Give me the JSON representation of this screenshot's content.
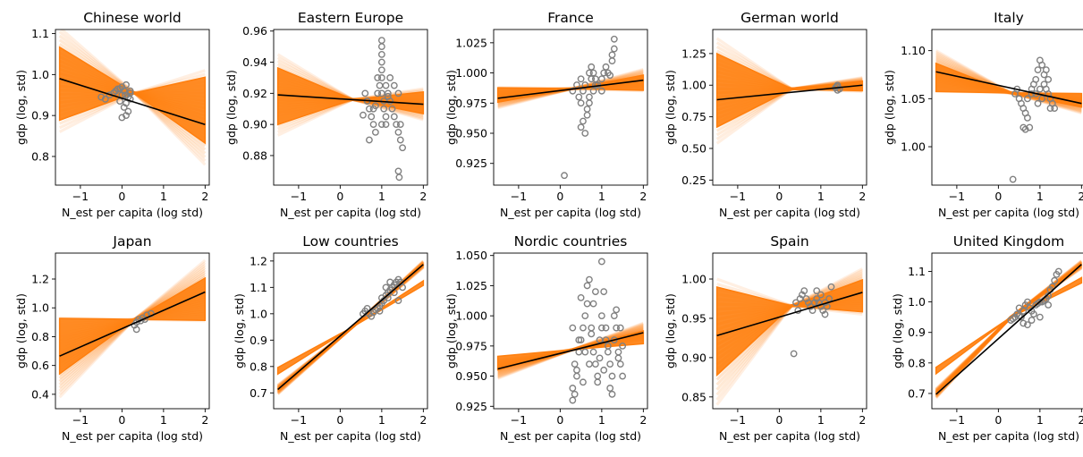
{
  "figure": {
    "colors": {
      "band": "#ff7f0e",
      "mean_line": "#000000",
      "points": "#808080",
      "axes": "#000000",
      "background": "#ffffff"
    }
  },
  "chart_data": [
    {
      "type": "scatter",
      "title": "Chinese world",
      "xlabel": "N_est per capita (log std)",
      "ylabel": "gdp (log, std)",
      "xlim": [
        -1.6,
        2.1
      ],
      "ylim": [
        0.73,
        1.11
      ],
      "xticks": [
        -1,
        0,
        1,
        2
      ],
      "xtick_labels": [
        "−1",
        "0",
        "1",
        "2"
      ],
      "yticks": [
        0.8,
        0.9,
        1.0,
        1.1
      ],
      "ytick_labels": [
        "0.8",
        "0.9",
        "1.0",
        "1.1"
      ],
      "mean_line": {
        "x": [
          -1.5,
          2.0
        ],
        "y": [
          0.99,
          0.878
        ]
      },
      "band": {
        "center": 0.955,
        "x_left": -1.5,
        "left": [
          0.86,
          1.115
        ],
        "x_right": 2.0,
        "right": [
          0.78,
          1.01
        ]
      },
      "points": {
        "x": [
          -0.5,
          -0.4,
          -0.3,
          -0.2,
          -0.1,
          -0.15,
          0.0,
          0.1,
          0.2,
          0.05,
          -0.05,
          0.15,
          0.1,
          0.0,
          0.05,
          -0.05,
          0.2,
          0.1,
          0.15,
          0.0,
          0.08,
          0.2
        ],
        "y": [
          0.945,
          0.94,
          0.95,
          0.955,
          0.965,
          0.96,
          0.97,
          0.975,
          0.96,
          0.92,
          0.935,
          0.945,
          0.9,
          0.95,
          0.96,
          0.965,
          0.94,
          0.93,
          0.91,
          0.895,
          0.95,
          0.955
        ]
      }
    },
    {
      "type": "scatter",
      "title": "Eastern Europe",
      "xlabel": "N_est per capita (log std)",
      "ylabel": "gdp (log, std)",
      "xlim": [
        -1.6,
        2.1
      ],
      "ylim": [
        0.861,
        0.961
      ],
      "xticks": [
        -1,
        0,
        1,
        2
      ],
      "xtick_labels": [
        "−1",
        "0",
        "1",
        "2"
      ],
      "yticks": [
        0.88,
        0.9,
        0.92,
        0.94,
        0.96
      ],
      "ytick_labels": [
        "0.88",
        "0.90",
        "0.92",
        "0.94",
        "0.96"
      ],
      "mean_line": {
        "x": [
          -1.5,
          2.0
        ],
        "y": [
          0.919,
          0.913
        ]
      },
      "band": {
        "center": 0.916,
        "x_left": -1.5,
        "left": [
          0.893,
          0.945
        ],
        "x_right": 2.0,
        "right": [
          0.903,
          0.923
        ]
      },
      "points": {
        "x": [
          0.55,
          0.6,
          0.65,
          0.7,
          0.75,
          0.8,
          0.85,
          0.9,
          0.95,
          1.0,
          1.0,
          1.0,
          1.0,
          1.0,
          1.0,
          1.0,
          1.05,
          1.05,
          1.1,
          1.1,
          1.1,
          1.15,
          1.2,
          1.25,
          1.3,
          1.35,
          1.4,
          1.45,
          1.5,
          0.7,
          0.8,
          0.9,
          1.0,
          1.2,
          1.3,
          1.4,
          0.65,
          0.85,
          1.15,
          1.45,
          1.4,
          1.42
        ],
        "y": [
          0.906,
          0.92,
          0.915,
          0.91,
          0.905,
          0.9,
          0.895,
          0.92,
          0.925,
          0.93,
          0.935,
          0.94,
          0.945,
          0.95,
          0.954,
          0.92,
          0.915,
          0.91,
          0.905,
          0.9,
          0.925,
          0.92,
          0.915,
          0.91,
          0.905,
          0.9,
          0.895,
          0.89,
          0.885,
          0.89,
          0.91,
          0.93,
          0.9,
          0.93,
          0.925,
          0.92,
          0.915,
          0.912,
          0.918,
          0.9,
          0.87,
          0.866
        ]
      }
    },
    {
      "type": "scatter",
      "title": "France",
      "xlabel": "N_est per capita (log std)",
      "ylabel": "gdp (log, std)",
      "xlim": [
        -1.6,
        2.1
      ],
      "ylim": [
        0.907,
        1.036
      ],
      "xticks": [
        -1,
        0,
        1,
        2
      ],
      "xtick_labels": [
        "−1",
        "0",
        "1",
        "2"
      ],
      "yticks": [
        0.925,
        0.95,
        0.975,
        1.0,
        1.025
      ],
      "ytick_labels": [
        "0.925",
        "0.950",
        "0.975",
        "1.000",
        "1.025"
      ],
      "mean_line": {
        "x": [
          -1.5,
          2.0
        ],
        "y": [
          0.979,
          0.994
        ]
      },
      "band": {
        "center": 0.987,
        "x_left": -1.5,
        "left": [
          0.971,
          0.988
        ],
        "x_right": 2.0,
        "right": [
          0.985,
          1.003
        ]
      },
      "points": {
        "x": [
          0.1,
          0.3,
          0.4,
          0.5,
          0.5,
          0.55,
          0.6,
          0.65,
          0.7,
          0.7,
          0.75,
          0.8,
          0.85,
          0.9,
          1.0,
          1.05,
          1.1,
          1.15,
          1.2,
          1.25,
          1.3,
          1.3,
          1.25,
          0.45,
          0.55,
          0.6,
          0.5,
          0.65,
          0.7,
          0.8,
          0.9,
          1.0,
          0.75,
          0.85
        ],
        "y": [
          0.915,
          0.985,
          0.99,
          0.995,
          0.955,
          0.96,
          0.95,
          0.965,
          0.975,
          1.0,
          1.005,
          1.0,
          0.995,
          0.99,
          0.995,
          1.0,
          1.005,
          1.0,
          0.998,
          1.01,
          1.02,
          1.028,
          1.015,
          0.98,
          0.985,
          0.99,
          0.975,
          0.97,
          0.98,
          0.985,
          0.99,
          0.985,
          0.995,
          0.99
        ]
      }
    },
    {
      "type": "scatter",
      "title": "German world",
      "xlabel": "N_est per capita (log std)",
      "ylabel": "gdp (log, std)",
      "xlim": [
        -1.6,
        2.1
      ],
      "ylim": [
        0.21,
        1.44
      ],
      "xticks": [
        -1,
        0,
        1,
        2
      ],
      "xtick_labels": [
        "−1",
        "0",
        "1",
        "2"
      ],
      "yticks": [
        0.25,
        0.5,
        0.75,
        1.0,
        1.25
      ],
      "ytick_labels": [
        "0.25",
        "0.50",
        "0.75",
        "1.00",
        "1.25"
      ],
      "mean_line": {
        "x": [
          -1.5,
          2.0
        ],
        "y": [
          0.885,
          1.0
        ]
      },
      "band": {
        "center": 0.97,
        "x_left": -1.5,
        "left": [
          0.54,
          1.37
        ],
        "x_right": 2.0,
        "right": [
          0.95,
          1.06
        ]
      },
      "points": {
        "x": [
          1.35,
          1.4,
          1.45,
          1.4,
          1.38
        ],
        "y": [
          0.98,
          1.0,
          0.97,
          0.96,
          0.99
        ]
      }
    },
    {
      "type": "scatter",
      "title": "Italy",
      "xlabel": "N_est per capita (log std)",
      "ylabel": "gdp (log, std)",
      "xlim": [
        -1.6,
        2.1
      ],
      "ylim": [
        0.96,
        1.122
      ],
      "xticks": [
        -1,
        0,
        1,
        2
      ],
      "xtick_labels": [
        "−1",
        "0",
        "1",
        "2"
      ],
      "yticks": [
        1.0,
        1.05,
        1.1
      ],
      "ytick_labels": [
        "1.00",
        "1.05",
        "1.10"
      ],
      "mean_line": {
        "x": [
          -1.5,
          2.0
        ],
        "y": [
          1.078,
          1.045
        ]
      },
      "band": {
        "center": 1.056,
        "x_left": -1.5,
        "left": [
          1.058,
          1.1
        ],
        "x_right": 2.0,
        "right": [
          1.035,
          1.055
        ]
      },
      "points": {
        "x": [
          0.35,
          0.4,
          0.45,
          0.5,
          0.55,
          0.6,
          0.65,
          0.7,
          0.75,
          0.8,
          0.85,
          0.9,
          0.95,
          1.0,
          1.05,
          1.1,
          1.15,
          1.2,
          1.25,
          1.3,
          1.35,
          0.9,
          1.0,
          1.1,
          1.2,
          0.7,
          0.8,
          1.15,
          1.25,
          0.95,
          1.05,
          0.65,
          0.6
        ],
        "y": [
          0.966,
          1.055,
          1.06,
          1.05,
          1.045,
          1.04,
          1.035,
          1.03,
          1.02,
          1.06,
          1.065,
          1.07,
          1.08,
          1.09,
          1.085,
          1.075,
          1.06,
          1.055,
          1.05,
          1.045,
          1.04,
          1.055,
          1.06,
          1.065,
          1.07,
          1.05,
          1.055,
          1.08,
          1.04,
          1.045,
          1.05,
          1.018,
          1.02
        ]
      }
    },
    {
      "type": "scatter",
      "title": "Japan",
      "xlabel": "N_est per capita (log std)",
      "ylabel": "gdp (log, std)",
      "xlim": [
        -1.6,
        2.1
      ],
      "ylim": [
        0.3,
        1.38
      ],
      "xticks": [
        -1,
        0,
        1,
        2
      ],
      "xtick_labels": [
        "−1",
        "0",
        "1",
        "2"
      ],
      "yticks": [
        0.4,
        0.6,
        0.8,
        1.0,
        1.2
      ],
      "ytick_labels": [
        "0.4",
        "0.6",
        "0.8",
        "1.0",
        "1.2"
      ],
      "mean_line": {
        "x": [
          -1.5,
          2.0
        ],
        "y": [
          0.665,
          1.11
        ]
      },
      "band": {
        "center": 0.92,
        "x_left": -1.5,
        "left": [
          0.38,
          0.93
        ],
        "x_right": 2.0,
        "right": [
          0.91,
          1.33
        ]
      },
      "points": {
        "x": [
          0.3,
          0.35,
          0.4,
          0.45,
          0.5,
          0.55,
          0.6,
          0.7,
          0.35
        ],
        "y": [
          0.88,
          0.9,
          0.92,
          0.91,
          0.93,
          0.92,
          0.95,
          0.96,
          0.85
        ]
      }
    },
    {
      "type": "scatter",
      "title": "Low countries",
      "xlabel": "N_est per capita (log std)",
      "ylabel": "gdp (log, std)",
      "xlim": [
        -1.6,
        2.1
      ],
      "ylim": [
        0.64,
        1.23
      ],
      "xticks": [
        -1,
        0,
        1,
        2
      ],
      "xtick_labels": [
        "−1",
        "0",
        "1",
        "2"
      ],
      "yticks": [
        0.7,
        0.8,
        0.9,
        1.0,
        1.1,
        1.2
      ],
      "ytick_labels": [
        "0.7",
        "0.8",
        "0.9",
        "1.0",
        "1.1",
        "1.2"
      ],
      "mean_line": {
        "x": [
          -1.5,
          2.0
        ],
        "y": [
          0.713,
          1.187
        ]
      },
      "band": {
        "center": 0.95,
        "x_left": -1.5,
        "left": [
          0.695,
          0.73
        ],
        "x_right": 2.0,
        "right": [
          1.175,
          1.2
        ]
      },
      "points": {
        "x": [
          0.55,
          0.6,
          0.65,
          0.7,
          0.75,
          0.8,
          0.85,
          0.9,
          0.95,
          1.0,
          1.05,
          1.1,
          1.15,
          1.2,
          1.25,
          1.3,
          1.35,
          1.4,
          1.45,
          1.5,
          1.1,
          1.2,
          1.3,
          1.0,
          1.4,
          0.95,
          1.15
        ],
        "y": [
          1.0,
          1.01,
          1.02,
          1.0,
          0.99,
          1.005,
          1.015,
          1.02,
          1.03,
          1.04,
          1.05,
          1.07,
          1.08,
          1.09,
          1.1,
          1.11,
          1.12,
          1.13,
          1.12,
          1.1,
          1.1,
          1.12,
          1.08,
          1.06,
          1.05,
          1.01,
          1.06
        ]
      }
    },
    {
      "type": "scatter",
      "title": "Nordic countries",
      "xlabel": "N_est per capita (log std)",
      "ylabel": "gdp (log, std)",
      "xlim": [
        -1.6,
        2.1
      ],
      "ylim": [
        0.923,
        1.052
      ],
      "xticks": [
        -1,
        0,
        1,
        2
      ],
      "xtick_labels": [
        "−1",
        "0",
        "1",
        "2"
      ],
      "yticks": [
        0.925,
        0.95,
        0.975,
        1.0,
        1.025,
        1.05
      ],
      "ytick_labels": [
        "0.925",
        "0.950",
        "0.975",
        "1.000",
        "1.025",
        "1.050"
      ],
      "mean_line": {
        "x": [
          -1.5,
          2.0
        ],
        "y": [
          0.956,
          0.986
        ]
      },
      "band": {
        "center": 0.972,
        "x_left": -1.5,
        "left": [
          0.948,
          0.964
        ],
        "x_right": 2.0,
        "right": [
          0.979,
          0.994
        ]
      },
      "points": {
        "x": [
          0.3,
          0.35,
          0.4,
          0.45,
          0.5,
          0.55,
          0.6,
          0.65,
          0.7,
          0.75,
          0.8,
          0.85,
          0.9,
          0.95,
          1.0,
          1.05,
          1.1,
          1.15,
          1.2,
          1.25,
          1.3,
          1.35,
          1.4,
          1.45,
          1.5,
          0.3,
          0.5,
          0.7,
          0.9,
          1.1,
          1.3,
          1.5,
          0.4,
          0.6,
          0.8,
          1.0,
          1.2,
          1.4,
          0.35,
          0.75,
          1.05,
          1.25,
          0.45,
          0.65,
          0.85,
          0.95,
          1.15,
          1.35,
          0.3,
          1.45,
          0.55,
          1.0
        ],
        "y": [
          0.94,
          0.96,
          0.95,
          0.97,
          0.98,
          0.99,
          1.0,
          1.01,
          1.03,
          0.99,
          0.97,
          0.96,
          0.95,
          0.98,
          1.0,
          1.02,
          0.99,
          0.97,
          0.96,
          0.95,
          0.98,
          0.99,
          0.97,
          0.96,
          0.95,
          0.99,
          1.015,
          0.96,
          0.945,
          0.98,
          1.0,
          0.975,
          0.955,
          0.97,
          1.01,
          0.99,
          0.94,
          0.965,
          0.935,
          0.985,
          0.955,
          0.935,
          0.98,
          1.025,
          1.02,
          0.965,
          0.975,
          1.005,
          0.93,
          0.99,
          0.945,
          1.045
        ]
      }
    },
    {
      "type": "scatter",
      "title": "Spain",
      "xlabel": "N_est per capita (log std)",
      "ylabel": "gdp (log, std)",
      "xlim": [
        -1.6,
        2.1
      ],
      "ylim": [
        0.835,
        1.033
      ],
      "xticks": [
        -1,
        0,
        1,
        2
      ],
      "xtick_labels": [
        "−1",
        "0",
        "1",
        "2"
      ],
      "yticks": [
        0.85,
        0.9,
        0.95,
        1.0
      ],
      "ytick_labels": [
        "0.85",
        "0.90",
        "0.95",
        "1.00"
      ],
      "mean_line": {
        "x": [
          -1.5,
          2.0
        ],
        "y": [
          0.928,
          0.983
        ]
      },
      "band": {
        "center": 0.966,
        "x_left": -1.5,
        "left": [
          0.84,
          1.0
        ],
        "x_right": 2.0,
        "right": [
          0.955,
          1.013
        ]
      },
      "points": {
        "x": [
          0.35,
          0.4,
          0.5,
          0.55,
          0.6,
          0.65,
          0.7,
          0.75,
          0.8,
          0.85,
          0.9,
          0.95,
          1.0,
          1.05,
          1.1,
          1.15,
          1.2,
          1.25,
          0.45,
          0.9,
          1.0,
          1.1
        ],
        "y": [
          0.905,
          0.97,
          0.975,
          0.98,
          0.985,
          0.975,
          0.97,
          0.965,
          0.96,
          0.97,
          0.975,
          0.97,
          0.965,
          0.96,
          0.955,
          0.965,
          0.975,
          0.99,
          0.96,
          0.985,
          0.98,
          0.97
        ]
      }
    },
    {
      "type": "scatter",
      "title": "United Kingdom",
      "xlabel": "N_est per capita (log std)",
      "ylabel": "gdp (log, std)",
      "xlim": [
        -1.6,
        2.1
      ],
      "ylim": [
        0.65,
        1.16
      ],
      "xticks": [
        -1,
        0,
        1,
        2
      ],
      "xtick_labels": [
        "−1",
        "0",
        "1",
        "2"
      ],
      "yticks": [
        0.7,
        0.8,
        0.9,
        1.0,
        1.1
      ],
      "ytick_labels": [
        "0.7",
        "0.8",
        "0.9",
        "1.0",
        "1.1"
      ],
      "mean_line": {
        "x": [
          -1.5,
          2.0
        ],
        "y": [
          0.697,
          1.123
        ]
      },
      "band": {
        "center": 0.95,
        "x_left": -1.5,
        "left": [
          0.685,
          0.715
        ],
        "x_right": 2.0,
        "right": [
          1.11,
          1.135
        ]
      },
      "points": {
        "x": [
          0.3,
          0.35,
          0.4,
          0.45,
          0.5,
          0.55,
          0.6,
          0.65,
          0.7,
          0.75,
          0.8,
          0.85,
          0.9,
          0.95,
          1.0,
          1.05,
          1.1,
          1.15,
          1.2,
          1.25,
          1.3,
          1.35,
          1.4,
          1.45,
          0.6,
          0.8,
          1.0,
          1.2,
          0.5,
          0.7
        ],
        "y": [
          0.94,
          0.945,
          0.95,
          0.96,
          0.955,
          0.95,
          0.97,
          0.99,
          1.0,
          0.98,
          0.97,
          0.96,
          0.99,
          0.995,
          1.0,
          1.0,
          1.005,
          1.01,
          1.02,
          1.04,
          1.05,
          1.07,
          1.09,
          1.1,
          0.93,
          0.94,
          0.95,
          0.99,
          0.98,
          0.925
        ]
      }
    }
  ]
}
